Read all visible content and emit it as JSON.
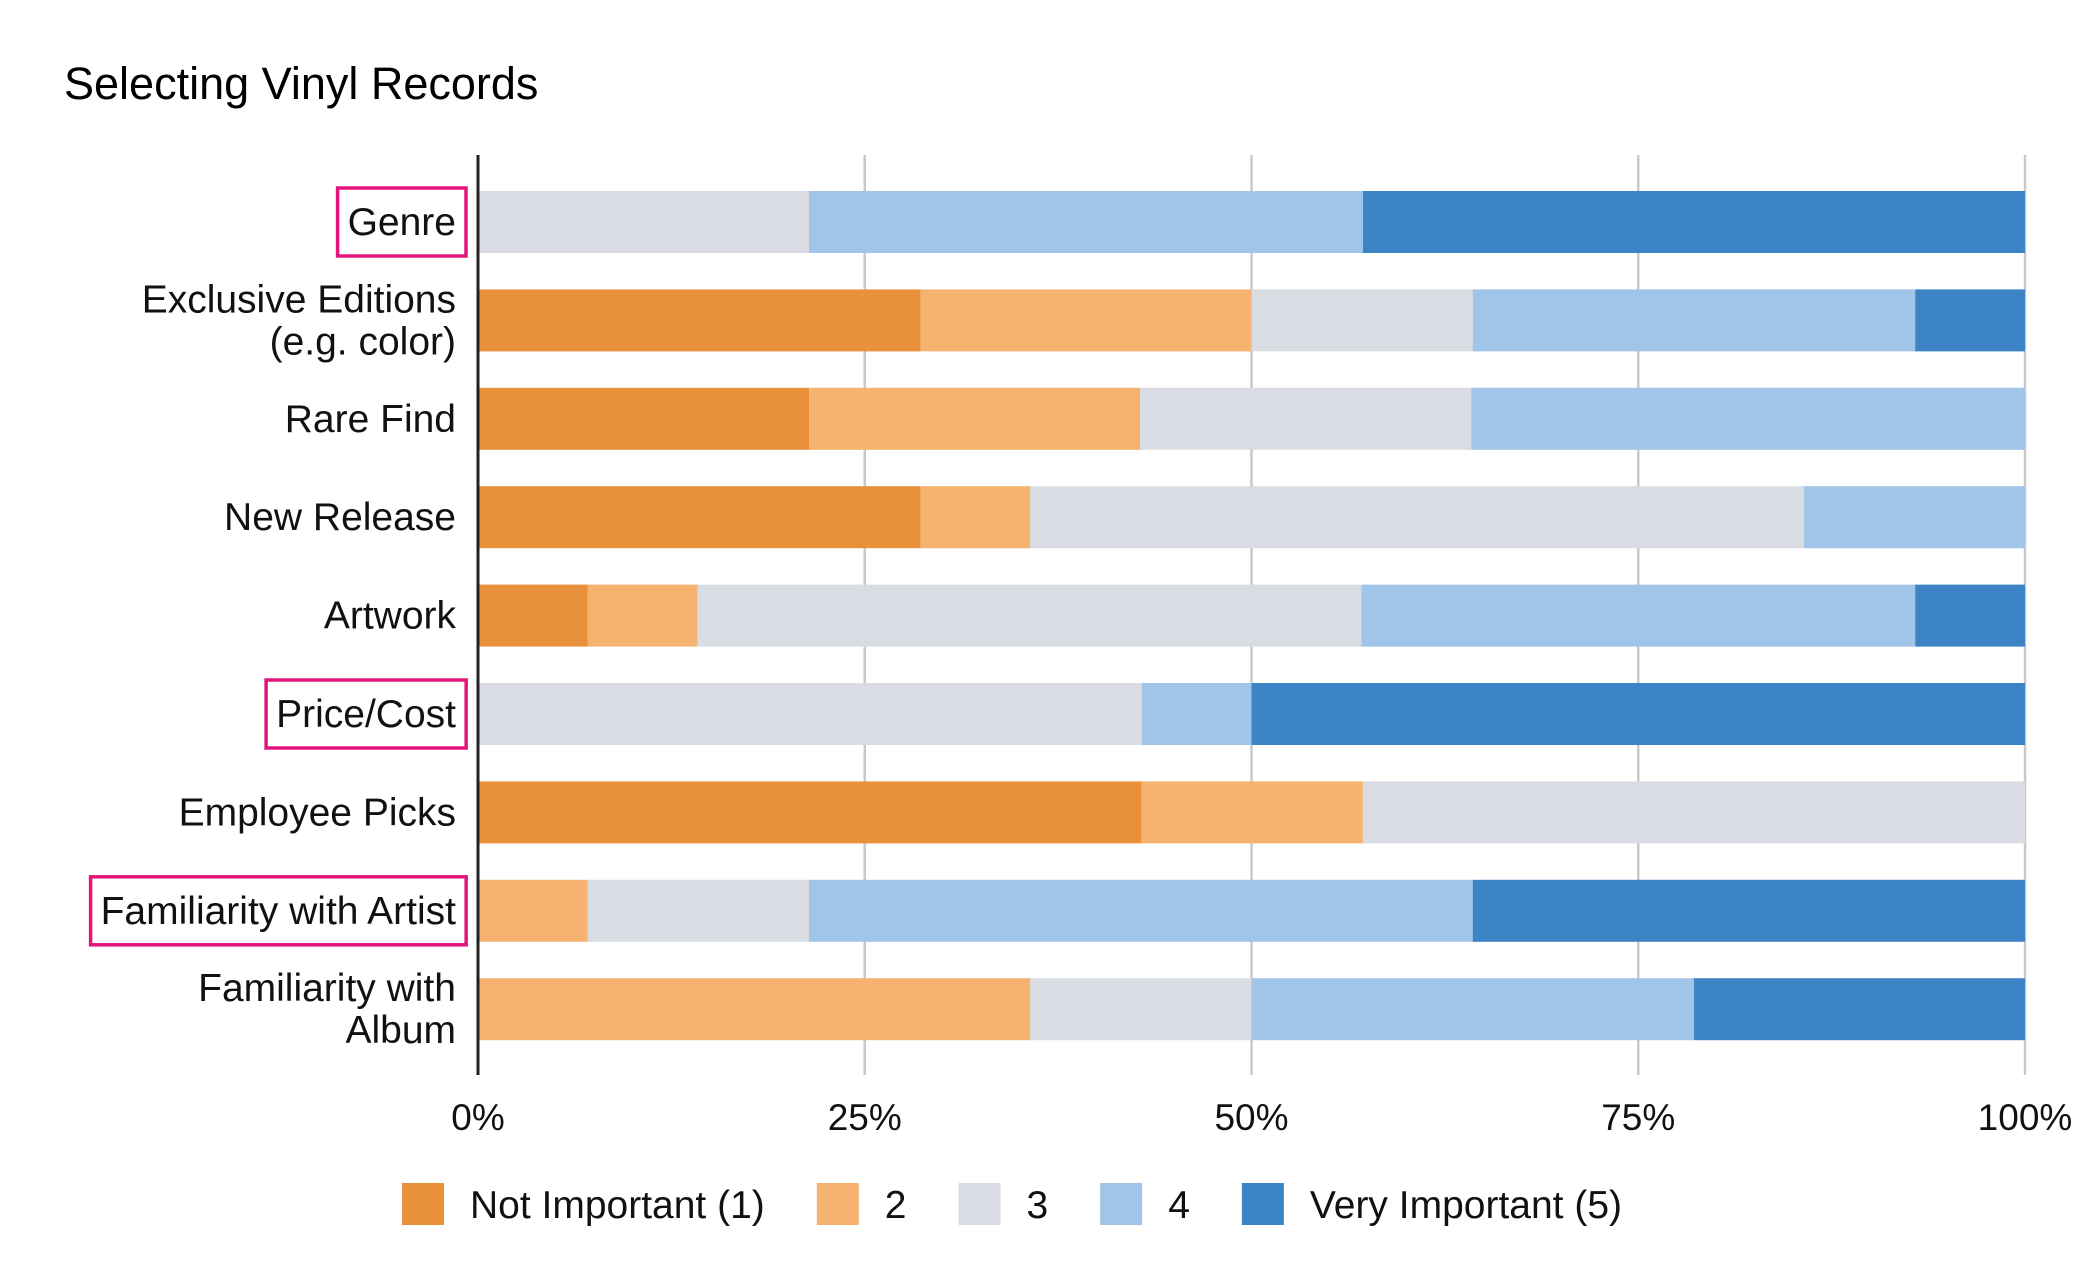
{
  "chart_data": {
    "type": "bar",
    "orientation": "horizontal",
    "stacked": true,
    "normalized": true,
    "title": "Selecting Vinyl Records",
    "xlabel": "",
    "ylabel": "",
    "xlim": [
      0,
      100
    ],
    "x_ticks": [
      "0%",
      "25%",
      "50%",
      "75%",
      "100%"
    ],
    "grid": true,
    "legend_position": "bottom",
    "categories": [
      "Genre",
      "Exclusive Editions\n(e.g. color)",
      "Rare Find",
      "New Release",
      "Artwork",
      "Price/Cost",
      "Employee Picks",
      "Familiarity with Artist",
      "Familiarity with\nAlbum"
    ],
    "highlighted_categories": [
      "Genre",
      "Price/Cost",
      "Familiarity with Artist"
    ],
    "series": [
      {
        "name": "Not Important (1)",
        "color": "#e8913a",
        "values": [
          0,
          28.6,
          21.4,
          28.6,
          7.1,
          0,
          42.9,
          0,
          0
        ]
      },
      {
        "name": "2",
        "color": "#f6b26f",
        "values": [
          0,
          21.4,
          21.4,
          7.1,
          7.1,
          0,
          14.3,
          7.1,
          35.7
        ]
      },
      {
        "name": "3",
        "color": "#d9dce2",
        "values": [
          21.4,
          14.3,
          21.4,
          50.0,
          42.9,
          42.9,
          42.8,
          14.3,
          14.3
        ]
      },
      {
        "name": "4",
        "color": "#a1c4e9",
        "values": [
          35.8,
          28.6,
          35.8,
          14.3,
          35.8,
          7.1,
          0,
          42.9,
          28.6
        ]
      },
      {
        "name": "Very Important (5)",
        "color": "#3d84c7",
        "values": [
          42.8,
          7.1,
          0,
          0,
          7.1,
          50.0,
          0,
          35.7,
          21.4
        ]
      }
    ]
  }
}
